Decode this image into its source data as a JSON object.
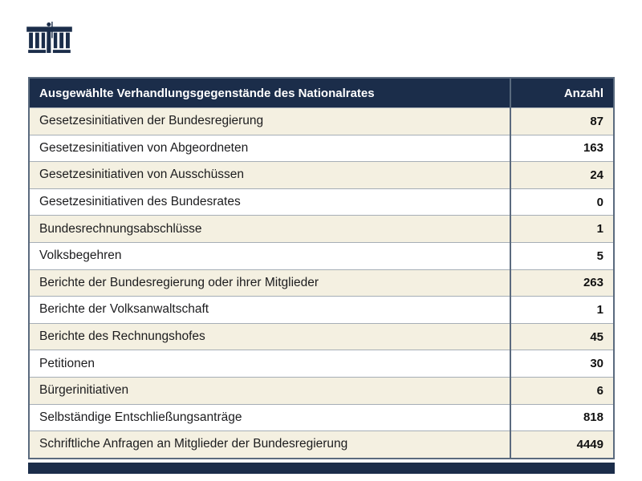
{
  "logo": {
    "name": "parliament-building",
    "color": "#1b2d4a"
  },
  "colors": {
    "navy": "#1b2d4a",
    "beige_row": "#f4f0e1",
    "white_row": "#ffffff",
    "outer_border": "#5a6a7e",
    "row_divider": "#a6aeb6",
    "header_text": "#ffffff",
    "body_text": "#1c1c1e"
  },
  "table": {
    "header": {
      "items_label": "Ausgewählte Verhandlungsgegenstände des Nationalrates",
      "count_label": "Anzahl"
    },
    "rows": [
      {
        "label": "Gesetzesinitiativen der Bundesregierung",
        "value": "87"
      },
      {
        "label": "Gesetzesinitiativen von Abgeordneten",
        "value": "163"
      },
      {
        "label": "Gesetzesinitiativen von Ausschüssen",
        "value": "24"
      },
      {
        "label": "Gesetzesinitiativen des Bundesrates",
        "value": "0"
      },
      {
        "label": "Bundesrechnungsabschlüsse",
        "value": "1"
      },
      {
        "label": "Volksbegehren",
        "value": "5"
      },
      {
        "label": "Berichte der Bundesregierung oder ihrer Mitglieder",
        "value": "263"
      },
      {
        "label": "Berichte der Volksanwaltschaft",
        "value": "1"
      },
      {
        "label": "Berichte des Rechnungshofes",
        "value": "45"
      },
      {
        "label": "Petitionen",
        "value": "30"
      },
      {
        "label": "Bürgerinitiativen",
        "value": "6"
      },
      {
        "label": "Selbständige Entschließungsanträge",
        "value": "818"
      },
      {
        "label": "Schriftliche Anfragen an Mitglieder der Bundesregierung",
        "value": "4449"
      }
    ]
  },
  "chart_data": {
    "type": "table",
    "title": "Ausgewählte Verhandlungsgegenstände des Nationalrates",
    "columns": [
      "Ausgewählte Verhandlungsgegenstände des Nationalrates",
      "Anzahl"
    ],
    "categories": [
      "Gesetzesinitiativen der Bundesregierung",
      "Gesetzesinitiativen von Abgeordneten",
      "Gesetzesinitiativen von Ausschüssen",
      "Gesetzesinitiativen des Bundesrates",
      "Bundesrechnungsabschlüsse",
      "Volksbegehren",
      "Berichte der Bundesregierung oder ihrer Mitglieder",
      "Berichte der Volksanwaltschaft",
      "Berichte des Rechnungshofes",
      "Petitionen",
      "Bürgerinitiativen",
      "Selbständige Entschließungsanträge",
      "Schriftliche Anfragen an Mitglieder der Bundesregierung"
    ],
    "values": [
      87,
      163,
      24,
      0,
      1,
      5,
      263,
      1,
      45,
      30,
      6,
      818,
      4449
    ],
    "layout": {
      "zebra_striping": true,
      "odd_row_color": "#f4f0e1",
      "even_row_color": "#ffffff",
      "header_color": "#1b2d4a",
      "value_alignment": "right"
    }
  }
}
